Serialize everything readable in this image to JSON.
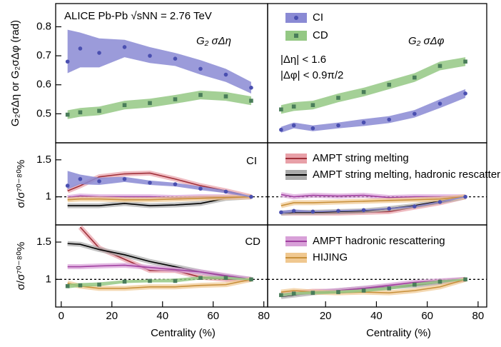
{
  "chart_data": [
    {
      "type": "line",
      "x": [
        2.5,
        7.5,
        15,
        25,
        35,
        45,
        55,
        65,
        75
      ],
      "xlim": [
        -2.2,
        81.5
      ],
      "ylim": [
        0.4,
        0.88
      ],
      "yticks": [
        0.5,
        0.6,
        0.7,
        0.8
      ],
      "ylabel": "G₂σΔη or G₂σΔφ (rad)",
      "annotations": [
        "ALICE Pb-Pb √sNN = 2.76 TeV",
        "G₂ σΔη"
      ],
      "series": [
        {
          "color": "#4a4fb0",
          "band_color": "#8a8ad4",
          "marker": "circle",
          "values": [
            0.68,
            0.725,
            0.71,
            0.73,
            0.7,
            0.69,
            0.655,
            0.635,
            0.59
          ],
          "band_low": [
            0.64,
            0.66,
            0.66,
            0.695,
            0.675,
            0.665,
            0.635,
            0.61,
            0.57
          ],
          "band_high": [
            0.79,
            0.78,
            0.76,
            0.755,
            0.73,
            0.71,
            0.685,
            0.655,
            0.61
          ]
        },
        {
          "color": "#4a7d5a",
          "band_color": "#94c884",
          "marker": "square",
          "values": [
            0.497,
            0.505,
            0.51,
            0.53,
            0.537,
            0.55,
            0.565,
            0.56,
            0.545
          ],
          "band_low": [
            0.482,
            0.49,
            0.495,
            0.515,
            0.522,
            0.535,
            0.55,
            0.545,
            0.53
          ],
          "band_high": [
            0.512,
            0.52,
            0.525,
            0.545,
            0.552,
            0.565,
            0.58,
            0.575,
            0.56
          ]
        }
      ]
    },
    {
      "type": "line",
      "x": [
        2.5,
        7.5,
        15,
        25,
        35,
        45,
        55,
        65,
        75
      ],
      "xlim": [
        -2.8,
        83.4
      ],
      "ylim": [
        0.4,
        0.88
      ],
      "annotations": [
        "G₂ σΔφ",
        "|Δη| < 1.6",
        "|Δφ| < 0.9π/2"
      ],
      "legend": "upper left",
      "series": [
        {
          "name": "CI",
          "color": "#4a4fb0",
          "band_color": "#8a8ad4",
          "marker": "circle",
          "values": [
            0.445,
            0.46,
            0.45,
            0.46,
            0.47,
            0.48,
            0.5,
            0.535,
            0.57
          ],
          "band_low": [
            0.435,
            0.45,
            0.44,
            0.45,
            0.458,
            0.468,
            0.487,
            0.52,
            0.555
          ],
          "band_high": [
            0.455,
            0.47,
            0.46,
            0.47,
            0.482,
            0.492,
            0.513,
            0.55,
            0.585
          ]
        },
        {
          "name": "CD",
          "color": "#4a7d5a",
          "band_color": "#94c884",
          "marker": "square",
          "values": [
            0.515,
            0.525,
            0.53,
            0.555,
            0.575,
            0.6,
            0.625,
            0.665,
            0.68
          ],
          "band_low": [
            0.5,
            0.51,
            0.515,
            0.54,
            0.56,
            0.585,
            0.61,
            0.65,
            0.665
          ],
          "band_high": [
            0.53,
            0.54,
            0.545,
            0.57,
            0.59,
            0.615,
            0.64,
            0.68,
            0.695
          ]
        }
      ]
    },
    {
      "type": "line",
      "x": [
        2.5,
        7.5,
        15,
        25,
        35,
        45,
        55,
        65,
        75
      ],
      "xlim": [
        -2.2,
        81.5
      ],
      "ylim": [
        0.62,
        1.73
      ],
      "yticks": [
        1,
        1.5
      ],
      "ylabel": "σ/σ⁷⁰⁻⁸⁰%",
      "annotations": [
        "CI"
      ],
      "hline": 1,
      "series": [
        {
          "color": "#a0303a",
          "band_color": "#e8a0a8",
          "values": [
            1.08,
            1.15,
            1.27,
            1.31,
            1.32,
            1.24,
            1.15,
            1.08,
            1.0
          ]
        },
        {
          "color": "#000000",
          "band_color": "#aaaaaa",
          "values": [
            0.88,
            0.88,
            0.88,
            0.91,
            0.88,
            0.89,
            0.91,
            0.98,
            1.0
          ]
        },
        {
          "color": "#a040a0",
          "band_color": "#d8a0d8",
          "values": [
            0.99,
            1.01,
            1.0,
            1.0,
            1.0,
            0.99,
            1.0,
            1.0,
            1.0
          ]
        },
        {
          "color": "#c8903a",
          "band_color": "#f0c890",
          "values": [
            0.96,
            0.97,
            0.97,
            0.96,
            0.96,
            0.97,
            0.98,
            0.99,
            1.0
          ]
        },
        {
          "color": "#4a4fb0",
          "band_color": "#8a8ad4",
          "marker": "circle",
          "values": [
            1.15,
            1.24,
            1.21,
            1.24,
            1.19,
            1.17,
            1.11,
            1.07,
            1.0
          ],
          "band_low": [
            1.1,
            1.17,
            1.16,
            1.2,
            1.16,
            1.14,
            1.09,
            1.05,
            0.99
          ],
          "band_high": [
            1.35,
            1.3,
            1.26,
            1.27,
            1.22,
            1.19,
            1.14,
            1.09,
            1.01
          ]
        }
      ]
    },
    {
      "type": "line",
      "x": [
        2.5,
        7.5,
        15,
        25,
        35,
        45,
        55,
        65,
        75
      ],
      "xlim": [
        -2.8,
        83.4
      ],
      "ylim": [
        0.62,
        1.73
      ],
      "hline": 1,
      "legend": "upper left",
      "series": [
        {
          "name": "AMPT string melting",
          "color": "#a0303a",
          "band_color": "#e8a0a8",
          "values": [
            0.78,
            0.78,
            0.78,
            0.78,
            0.79,
            0.8,
            0.86,
            0.92,
            1.0
          ]
        },
        {
          "name": "AMPT string melting, hadronic rescattering",
          "color": "#000000",
          "band_color": "#aaaaaa",
          "values": [
            0.78,
            0.79,
            0.79,
            0.8,
            0.81,
            0.84,
            0.88,
            0.94,
            1.0
          ]
        },
        {
          "color": "#a040a0",
          "band_color": "#d8a0d8",
          "values": [
            1.03,
            1.0,
            1.02,
            1.01,
            1.02,
            0.99,
            1.0,
            1.0,
            1.0
          ]
        },
        {
          "color": "#c8903a",
          "band_color": "#f0c890",
          "values": [
            0.88,
            0.92,
            0.92,
            0.93,
            0.94,
            0.95,
            0.96,
            0.97,
            1.0
          ]
        },
        {
          "color": "#4a4fb0",
          "band_color": "#8a8ad4",
          "marker": "circle",
          "values": [
            0.79,
            0.81,
            0.8,
            0.81,
            0.82,
            0.84,
            0.87,
            0.93,
            1.0
          ],
          "band_low": [
            0.77,
            0.79,
            0.79,
            0.8,
            0.81,
            0.83,
            0.86,
            0.92,
            0.99
          ],
          "band_high": [
            0.81,
            0.83,
            0.81,
            0.82,
            0.83,
            0.85,
            0.88,
            0.94,
            1.01
          ]
        }
      ]
    },
    {
      "type": "line",
      "x": [
        2.5,
        7.5,
        15,
        25,
        35,
        45,
        55,
        65,
        75
      ],
      "xlim": [
        -2.2,
        81.5
      ],
      "ylim": [
        0.63,
        1.73
      ],
      "xticks": [
        0,
        20,
        40,
        60,
        80
      ],
      "yticks": [
        1,
        1.5
      ],
      "xlabel": "Centrality (%)",
      "ylabel": "σ/σ⁷⁰⁻⁸⁰%",
      "annotations": [
        "CD"
      ],
      "hline": 1,
      "series": [
        {
          "color": "#a0303a",
          "band_color": "#e8a0a8",
          "values": [
            null,
            1.7,
            1.42,
            1.27,
            1.12,
            1.12,
            1.03,
            1.0,
            1.0
          ]
        },
        {
          "color": "#000000",
          "band_color": "#aaaaaa",
          "values": [
            1.48,
            1.47,
            1.4,
            1.33,
            1.24,
            1.17,
            1.1,
            1.04,
            1.0
          ]
        },
        {
          "color": "#a040a0",
          "band_color": "#d8a0d8",
          "values": [
            1.17,
            1.17,
            1.18,
            1.19,
            1.16,
            1.13,
            1.1,
            1.05,
            1.0
          ]
        },
        {
          "color": "#c8903a",
          "band_color": "#f0c890",
          "values": [
            0.95,
            0.91,
            0.88,
            0.88,
            0.9,
            0.9,
            0.92,
            0.93,
            1.0
          ]
        },
        {
          "color": "#4a7d5a",
          "band_color": "#94c884",
          "marker": "square",
          "values": [
            0.91,
            0.92,
            0.93,
            0.97,
            0.98,
            0.98,
            1.02,
            1.02,
            1.0
          ],
          "band_low": [
            0.88,
            0.9,
            0.91,
            0.95,
            0.96,
            0.96,
            1.0,
            1.0,
            0.99
          ],
          "band_high": [
            0.94,
            0.95,
            0.96,
            0.99,
            1.0,
            1.01,
            1.04,
            1.04,
            1.01
          ]
        }
      ]
    },
    {
      "type": "line",
      "x": [
        2.5,
        7.5,
        15,
        25,
        35,
        45,
        55,
        65,
        75
      ],
      "xlim": [
        -2.8,
        83.4
      ],
      "ylim": [
        0.63,
        1.73
      ],
      "xticks": [
        20,
        40,
        60,
        80
      ],
      "xlabel": "Centrality (%)",
      "hline": 1,
      "legend": "upper left",
      "series": [
        {
          "color": "#a0303a",
          "band_color": "#e8a0a8",
          "values": [
            0.8,
            0.82,
            0.84,
            0.84,
            0.86,
            0.9,
            0.94,
            0.97,
            1.0
          ]
        },
        {
          "color": "#000000",
          "band_color": "#aaaaaa",
          "values": [
            0.77,
            0.79,
            0.82,
            0.85,
            0.88,
            0.9,
            0.92,
            0.96,
            1.0
          ]
        },
        {
          "name": "AMPT hadronic rescattering",
          "color": "#a040a0",
          "band_color": "#d8a0d8",
          "values": [
            0.8,
            0.82,
            0.83,
            0.85,
            0.88,
            0.92,
            0.96,
            0.98,
            1.0
          ]
        },
        {
          "name": "HIJING",
          "color": "#c8903a",
          "band_color": "#f0c890",
          "values": [
            0.83,
            0.85,
            0.83,
            0.82,
            0.83,
            0.82,
            0.85,
            0.9,
            1.0
          ]
        },
        {
          "color": "#4a7d5a",
          "band_color": "#94c884",
          "marker": "square",
          "values": [
            0.79,
            0.81,
            0.82,
            0.83,
            0.85,
            0.88,
            0.93,
            0.97,
            1.0
          ],
          "band_low": [
            0.77,
            0.79,
            0.8,
            0.81,
            0.83,
            0.86,
            0.91,
            0.95,
            0.99
          ],
          "band_high": [
            0.81,
            0.83,
            0.84,
            0.85,
            0.87,
            0.9,
            0.95,
            0.99,
            1.01
          ]
        }
      ]
    }
  ]
}
